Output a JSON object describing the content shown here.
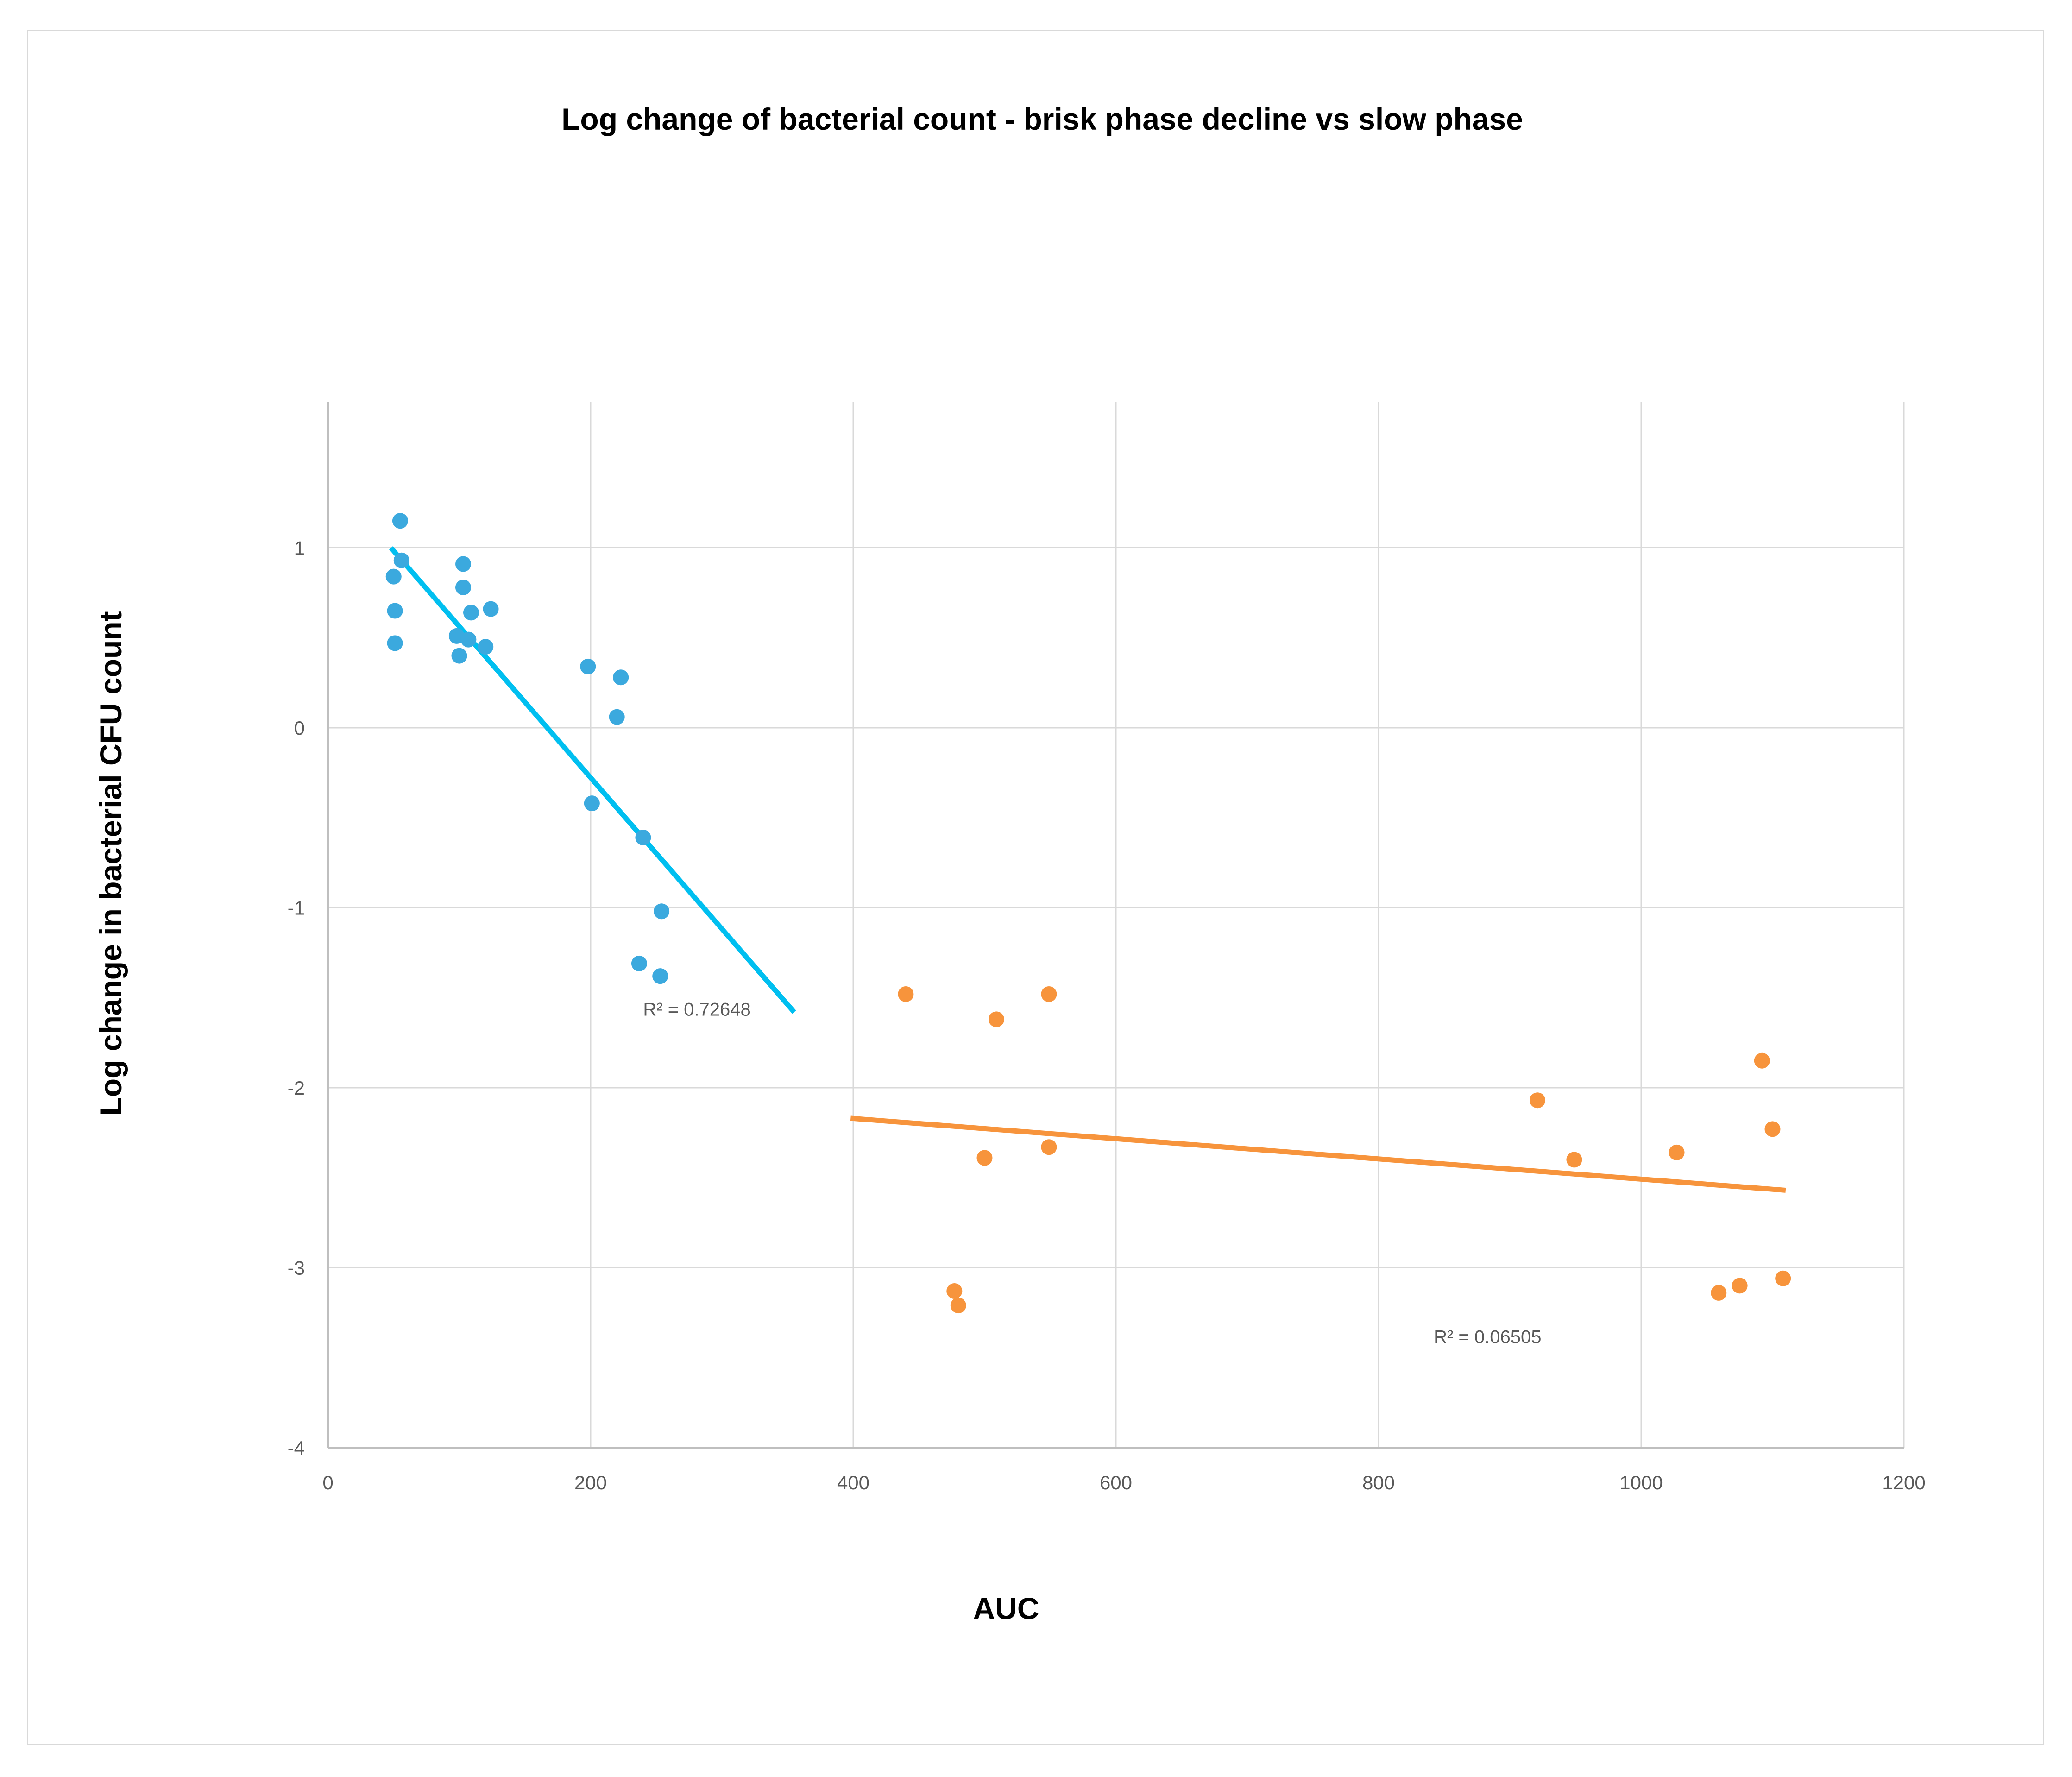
{
  "chart_data": {
    "type": "scatter",
    "title": "Log change of bacterial count - brisk phase decline vs slow phase",
    "xlabel": "AUC",
    "ylabel": "Log change in bacterial CFU count",
    "xlim": [
      0,
      1200
    ],
    "ylim": [
      -4,
      1.8
    ],
    "xticks": [
      0,
      200,
      400,
      600,
      800,
      1000,
      1200
    ],
    "yticks": [
      -4,
      -3,
      -2,
      -1,
      0,
      1
    ],
    "xtick_labels": [
      "0",
      "200",
      "400",
      "600",
      "800",
      "1000",
      "1200"
    ],
    "ytick_labels": [
      "-4",
      "-3",
      "-2",
      "-1",
      "0",
      "1"
    ],
    "grid": true,
    "series": [
      {
        "color": "#3BA9DE",
        "points": [
          [
            55,
            1.15
          ],
          [
            56,
            0.93
          ],
          [
            50,
            0.84
          ],
          [
            51,
            0.65
          ],
          [
            51,
            0.47
          ],
          [
            103,
            0.91
          ],
          [
            103,
            0.78
          ],
          [
            109,
            0.64
          ],
          [
            124,
            0.66
          ],
          [
            98,
            0.51
          ],
          [
            107,
            0.49
          ],
          [
            100,
            0.4
          ],
          [
            120,
            0.45
          ],
          [
            198,
            0.34
          ],
          [
            223,
            0.28
          ],
          [
            220,
            0.06
          ],
          [
            201,
            -0.42
          ],
          [
            240,
            -0.61
          ],
          [
            254,
            -1.02
          ],
          [
            237,
            -1.31
          ],
          [
            253,
            -1.38
          ]
        ],
        "trendline": {
          "x": [
            48,
            355
          ],
          "y": [
            1.0,
            -1.58
          ],
          "color": "#00BFF0"
        },
        "r2_label": "R² = 0.72648",
        "r2_position": [
          240,
          -1.6
        ]
      },
      {
        "color": "#F7943C",
        "points": [
          [
            440,
            -1.48
          ],
          [
            509,
            -1.62
          ],
          [
            549,
            -1.48
          ],
          [
            500,
            -2.39
          ],
          [
            549,
            -2.33
          ],
          [
            477,
            -3.13
          ],
          [
            480,
            -3.21
          ],
          [
            921,
            -2.07
          ],
          [
            949,
            -2.4
          ],
          [
            1027,
            -2.36
          ],
          [
            1092,
            -1.85
          ],
          [
            1100,
            -2.23
          ],
          [
            1059,
            -3.14
          ],
          [
            1075,
            -3.1
          ],
          [
            1108,
            -3.06
          ]
        ],
        "trendline": {
          "x": [
            398,
            1110
          ],
          "y": [
            -2.17,
            -2.57
          ],
          "color": "#F7943C"
        },
        "r2_label": "R² = 0.06505",
        "r2_position": [
          842,
          -3.42
        ]
      }
    ]
  }
}
